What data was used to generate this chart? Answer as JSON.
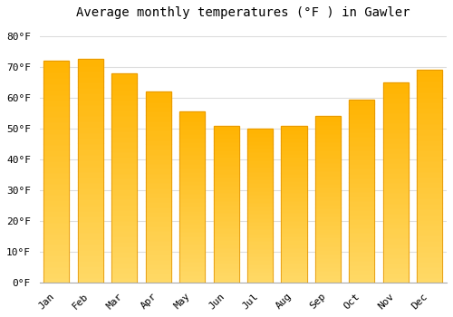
{
  "title": "Average monthly temperatures (°F ) in Gawler",
  "months": [
    "Jan",
    "Feb",
    "Mar",
    "Apr",
    "May",
    "Jun",
    "Jul",
    "Aug",
    "Sep",
    "Oct",
    "Nov",
    "Dec"
  ],
  "values": [
    72,
    72.5,
    68,
    62,
    55.5,
    51,
    50,
    51,
    54,
    59.5,
    65,
    69
  ],
  "bar_color_top": "#FFB300",
  "bar_color_bottom": "#FFD966",
  "bar_edge_color": "#E09000",
  "background_color": "#ffffff",
  "grid_color": "#dddddd",
  "ylim": [
    0,
    84
  ],
  "yticks": [
    0,
    10,
    20,
    30,
    40,
    50,
    60,
    70,
    80
  ],
  "ylabel_format": "°F",
  "title_fontsize": 10,
  "tick_fontsize": 8,
  "font_family": "monospace",
  "bar_width": 0.75
}
